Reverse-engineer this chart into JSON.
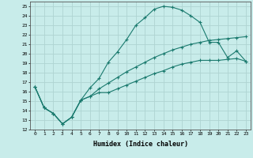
{
  "xlabel": "Humidex (Indice chaleur)",
  "xlim": [
    -0.5,
    23.5
  ],
  "ylim": [
    12,
    25.5
  ],
  "yticks": [
    12,
    13,
    14,
    15,
    16,
    17,
    18,
    19,
    20,
    21,
    22,
    23,
    24,
    25
  ],
  "xticks": [
    0,
    1,
    2,
    3,
    4,
    5,
    6,
    7,
    8,
    9,
    10,
    11,
    12,
    13,
    14,
    15,
    16,
    17,
    18,
    19,
    20,
    21,
    22,
    23
  ],
  "bg_color": "#c8ecea",
  "grid_color": "#aed4d2",
  "line_color": "#1a7a6e",
  "line1_x": [
    0,
    1,
    2,
    3,
    4,
    5,
    6,
    7,
    8,
    9,
    10,
    11,
    12,
    13,
    14,
    15,
    16,
    17,
    18,
    19,
    20,
    21,
    22,
    23
  ],
  "line1_y": [
    16.5,
    14.3,
    13.7,
    12.6,
    13.3,
    15.1,
    16.4,
    17.4,
    19.1,
    20.2,
    21.5,
    23.0,
    23.8,
    24.7,
    25.0,
    24.9,
    24.6,
    24.0,
    23.3,
    21.2,
    21.2,
    19.6,
    20.3,
    19.2
  ],
  "line2_x": [
    0,
    1,
    2,
    3,
    4,
    5,
    6,
    7,
    8,
    9,
    10,
    11,
    12,
    13,
    14,
    15,
    16,
    17,
    18,
    19,
    20,
    21,
    22,
    23
  ],
  "line2_y": [
    16.5,
    14.3,
    13.7,
    12.6,
    13.3,
    15.1,
    15.5,
    16.3,
    16.9,
    17.5,
    18.1,
    18.6,
    19.1,
    19.6,
    20.0,
    20.4,
    20.7,
    21.0,
    21.2,
    21.4,
    21.5,
    21.6,
    21.7,
    21.8
  ],
  "line3_x": [
    0,
    1,
    2,
    3,
    4,
    5,
    6,
    7,
    8,
    9,
    10,
    11,
    12,
    13,
    14,
    15,
    16,
    17,
    18,
    19,
    20,
    21,
    22,
    23
  ],
  "line3_y": [
    16.5,
    14.3,
    13.7,
    12.6,
    13.3,
    15.1,
    15.5,
    15.9,
    15.9,
    16.3,
    16.7,
    17.1,
    17.5,
    17.9,
    18.2,
    18.6,
    18.9,
    19.1,
    19.3,
    19.3,
    19.3,
    19.4,
    19.5,
    19.2
  ]
}
